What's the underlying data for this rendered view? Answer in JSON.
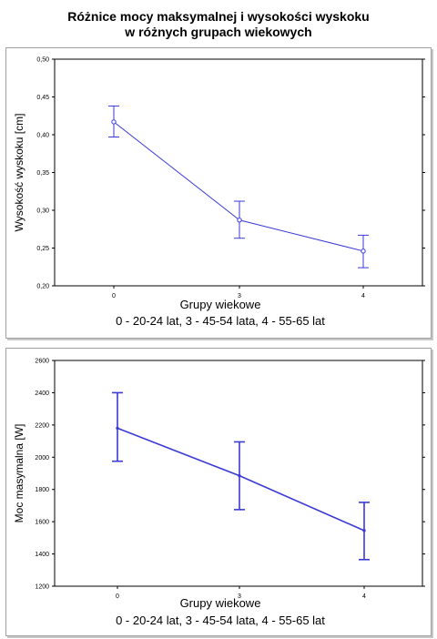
{
  "title": {
    "line1": "Różnice mocy maksymalnej i wysokości wyskoku",
    "line2": "w różnych grupach wiekowych"
  },
  "chart_data": [
    {
      "type": "line",
      "title": "Różnice mocy maksymalnej i wysokości wyskoku w różnych grupach wiekowych",
      "xlabel": "Grupy wiekowe",
      "xlabel2": "0 - 20-24 lat, 3 - 45-54 lata, 4 - 55-65 lat",
      "ylabel": "Wysokość wyskoku [cm]",
      "categories": [
        "0",
        "3",
        "4"
      ],
      "ylim": [
        0.2,
        0.5
      ],
      "yticks": [
        "0,50",
        "0,45",
        "0,40",
        "0,35",
        "0,30",
        "0,25",
        "0,20"
      ],
      "ytick_values": [
        0.5,
        0.45,
        0.4,
        0.35,
        0.3,
        0.25,
        0.2
      ],
      "series": [
        {
          "values": [
            0.417,
            0.287,
            0.246
          ],
          "lower": [
            0.397,
            0.263,
            0.224
          ],
          "upper": [
            0.438,
            0.312,
            0.267
          ]
        }
      ],
      "color": "#3a3ad6",
      "grid": false
    },
    {
      "type": "line",
      "xlabel": "Grupy wiekowe",
      "xlabel2": "0 - 20-24 lat, 3 - 45-54 lata, 4 - 55-65 lat",
      "ylabel": "Moc masymalna [W]",
      "categories": [
        "0",
        "3",
        "4"
      ],
      "ylim": [
        1200,
        2600
      ],
      "yticks": [
        "2600",
        "2400",
        "2200",
        "2000",
        "1800",
        "1600",
        "1400",
        "1200"
      ],
      "ytick_values": [
        2600,
        2400,
        2200,
        2000,
        1800,
        1600,
        1400,
        1200
      ],
      "series": [
        {
          "values": [
            2180,
            1885,
            1545
          ],
          "lower": [
            1975,
            1675,
            1365
          ],
          "upper": [
            2400,
            2095,
            1720
          ]
        }
      ],
      "color": "#3a3ad6",
      "grid": false
    }
  ]
}
